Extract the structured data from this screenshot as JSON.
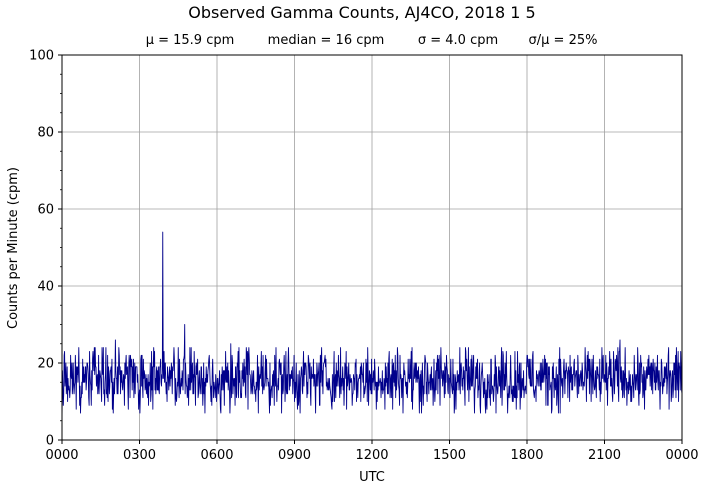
{
  "chart_data": {
    "type": "line",
    "title": "Observed Gamma Counts, AJ4CO, 2018 1 5",
    "stats": [
      "μ = 15.9 cpm",
      "median = 16 cpm",
      "σ = 4.0 cpm",
      "σ/μ = 25%"
    ],
    "xlabel": "UTC",
    "ylabel": "Counts per Minute (cpm)",
    "xlim": [
      0,
      1440
    ],
    "ylim": [
      0,
      100
    ],
    "x_unit": "minutes after 0000 UTC",
    "x_ticks": [
      0,
      180,
      360,
      540,
      720,
      900,
      1080,
      1260,
      1440
    ],
    "x_tick_labels": [
      "0000",
      "0300",
      "0600",
      "0900",
      "1200",
      "1500",
      "1800",
      "2100",
      "0000"
    ],
    "y_ticks": [
      0,
      20,
      40,
      60,
      80,
      100
    ],
    "y_tick_labels": [
      "0",
      "20",
      "40",
      "60",
      "80",
      "100"
    ],
    "grid": true,
    "line_color": "#00008b",
    "series": [
      {
        "name": "",
        "mean": 15.9,
        "sd": 4.0,
        "points": [
          [
            0,
            5
          ],
          [
            1,
            18
          ],
          [
            2,
            13
          ],
          [
            3,
            9
          ],
          [
            5,
            22
          ],
          [
            8,
            16
          ],
          [
            12,
            19
          ],
          [
            16,
            14
          ],
          [
            20,
            22
          ],
          [
            28,
            12
          ],
          [
            35,
            17
          ],
          [
            45,
            11
          ],
          [
            55,
            19
          ],
          [
            70,
            13
          ],
          [
            85,
            22
          ],
          [
            100,
            15
          ],
          [
            110,
            12
          ],
          [
            124,
            26
          ],
          [
            140,
            14
          ],
          [
            160,
            20
          ],
          [
            175,
            15
          ],
          [
            186,
            22
          ],
          [
            196,
            12
          ],
          [
            210,
            19
          ],
          [
            225,
            13
          ],
          [
            232,
            17
          ],
          [
            234,
            54
          ],
          [
            236,
            16
          ],
          [
            242,
            12
          ],
          [
            255,
            18
          ],
          [
            266,
            10
          ],
          [
            273,
            21
          ],
          [
            280,
            16
          ],
          [
            285,
            30
          ],
          [
            292,
            12
          ],
          [
            305,
            17
          ],
          [
            320,
            14
          ],
          [
            340,
            19
          ],
          [
            360,
            12
          ],
          [
            375,
            18
          ],
          [
            392,
            25
          ],
          [
            410,
            11
          ],
          [
            430,
            17
          ],
          [
            452,
            13
          ],
          [
            475,
            21
          ],
          [
            498,
            15
          ],
          [
            520,
            23
          ],
          [
            545,
            13
          ],
          [
            560,
            19
          ],
          [
            578,
            9
          ],
          [
            600,
            22
          ],
          [
            622,
            14
          ],
          [
            640,
            17
          ],
          [
            660,
            23
          ],
          [
            680,
            13
          ],
          [
            700,
            20
          ],
          [
            720,
            12
          ],
          [
            735,
            19
          ],
          [
            750,
            8
          ],
          [
            766,
            16
          ],
          [
            780,
            22
          ],
          [
            800,
            12
          ],
          [
            818,
            20
          ],
          [
            838,
            15
          ],
          [
            858,
            19
          ],
          [
            878,
            9
          ],
          [
            898,
            17
          ],
          [
            922,
            13
          ],
          [
            940,
            21
          ],
          [
            960,
            14
          ],
          [
            975,
            18
          ],
          [
            998,
            12
          ],
          [
            1020,
            20
          ],
          [
            1040,
            11
          ],
          [
            1060,
            17
          ],
          [
            1081,
            22
          ],
          [
            1100,
            14
          ],
          [
            1125,
            20
          ],
          [
            1150,
            12
          ],
          [
            1170,
            16
          ],
          [
            1190,
            21
          ],
          [
            1210,
            13
          ],
          [
            1230,
            18
          ],
          [
            1250,
            10
          ],
          [
            1265,
            20
          ],
          [
            1280,
            15
          ],
          [
            1296,
            26
          ],
          [
            1310,
            13
          ],
          [
            1330,
            18
          ],
          [
            1350,
            12
          ],
          [
            1370,
            20
          ],
          [
            1390,
            15
          ],
          [
            1408,
            22
          ],
          [
            1420,
            13
          ],
          [
            1430,
            17
          ],
          [
            1440,
            12
          ]
        ]
      }
    ]
  }
}
